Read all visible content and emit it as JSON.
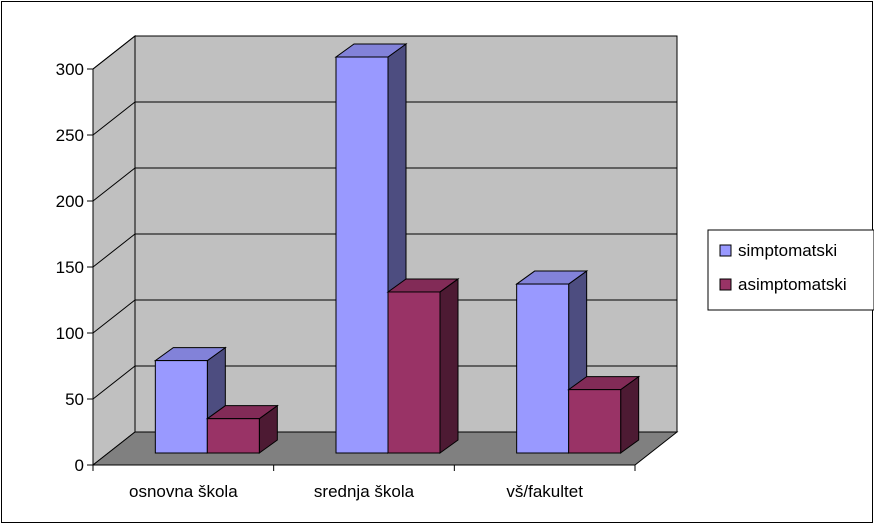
{
  "chart_data": {
    "type": "bar",
    "style": "3d-clustered-column",
    "categories": [
      "osnovna škola",
      "srednja škola",
      "vš/fakultet"
    ],
    "series": [
      {
        "name": "simptomatski",
        "values": [
          70,
          300,
          128
        ],
        "color": "#9999FF"
      },
      {
        "name": "asimptomatski",
        "values": [
          26,
          122,
          48
        ],
        "color": "#993366"
      }
    ],
    "yticks": [
      0,
      50,
      100,
      150,
      200,
      250,
      300
    ],
    "ylim": [
      0,
      300
    ],
    "grid": true,
    "legend": "right",
    "colors": {
      "wall": "#C0C0C0",
      "floor": "#808080",
      "gridline": "#000000"
    }
  }
}
